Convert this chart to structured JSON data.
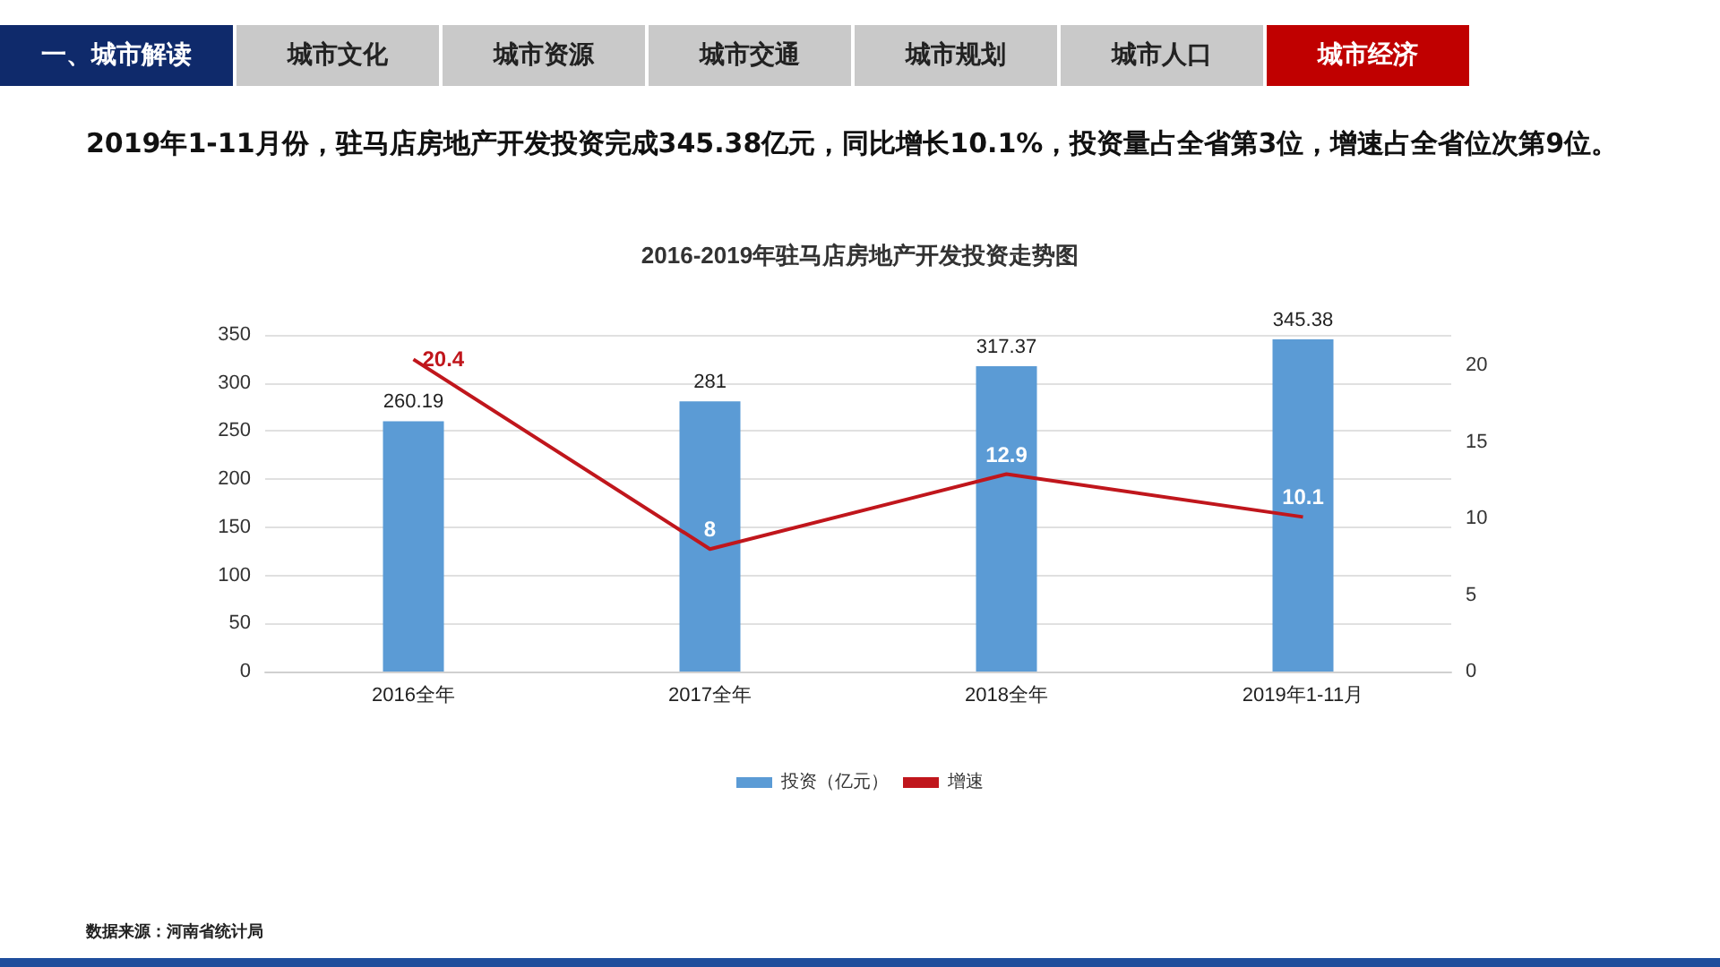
{
  "chart_data": {
    "type": "bar",
    "title": "2016-2019年驻马店房地产开发投资走势图",
    "subtitle": "2019年1-11月份，驻马店房地产开发投资完成345.38亿元，同比增长10.1%，投资量占全省第3位，增速占全省位次第9位。",
    "annotations": [
      "一、城市解读",
      "城市文化",
      "城市资源",
      "城市交通",
      "城市规划",
      "城市人口",
      "城市经济",
      "数据来源：河南省统计局"
    ],
    "categories": [
      "2016全年",
      "2017全年",
      "2018全年",
      "2019年1-11月"
    ],
    "series": [
      {
        "name": "投资（亿元）",
        "color": "#5b9bd5",
        "values": [
          260.19,
          281,
          317.37,
          345.38
        ]
      },
      {
        "name": "增速",
        "type": "line",
        "axis": "y2",
        "color": "#c0161c",
        "values": [
          20.4,
          8,
          12.9,
          10.1
        ]
      }
    ],
    "ylim": [
      0,
      350
    ],
    "yticks": [
      0,
      50,
      100,
      150,
      200,
      250,
      300,
      350
    ],
    "y2lim": [
      0,
      22
    ],
    "y2ticks": [
      0,
      5,
      10,
      15,
      20
    ],
    "grid": "y",
    "legend": "bottom",
    "data_labels": true,
    "marker": "none"
  }
}
